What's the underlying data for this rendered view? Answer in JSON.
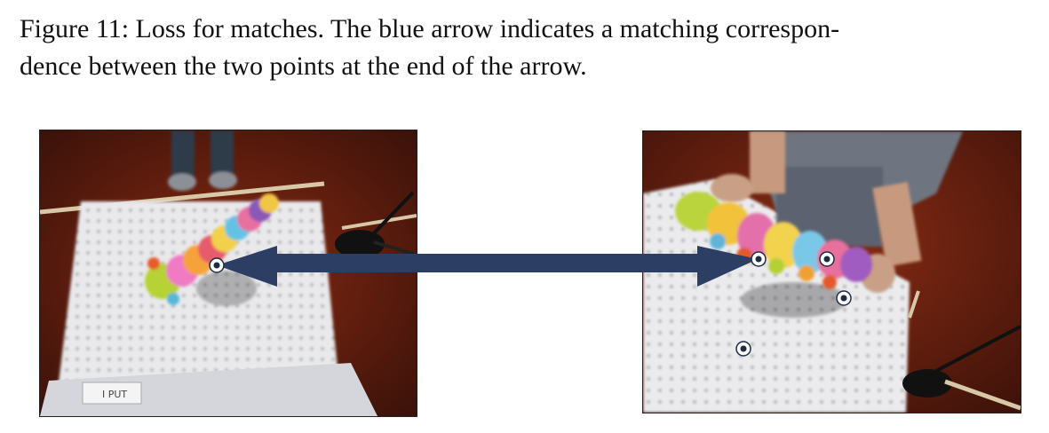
{
  "caption": {
    "line1": "Figure 11: Loss for matches.  The blue arrow indicates a matching correspon-",
    "line2": "dence between the two points at the end of the arrow."
  },
  "figure": {
    "left_image": {
      "label_card_text": "I PUT"
    },
    "right_image": {},
    "arrow": {
      "color": "#2c3e63",
      "direction": "bidirectional",
      "meaning": "matching correspondence"
    },
    "keypoint_marker": {
      "fill": "#ffffff",
      "center": "#1d2b45"
    }
  }
}
